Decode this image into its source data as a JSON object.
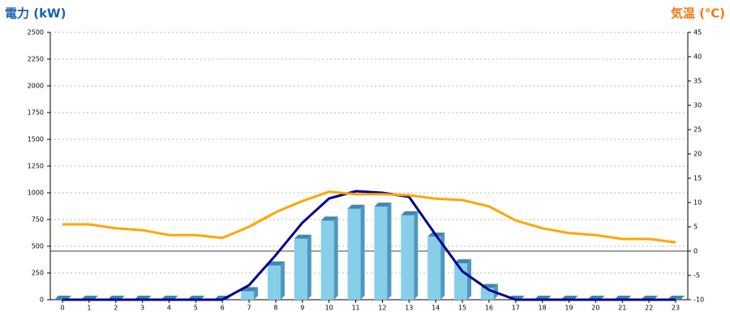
{
  "chart_data": {
    "type": "bar",
    "y_label": "電力 (kW)",
    "y2_label": "気温 (℃)",
    "categories": [
      "0",
      "1",
      "2",
      "3",
      "4",
      "5",
      "6",
      "7",
      "8",
      "9",
      "10",
      "11",
      "12",
      "13",
      "14",
      "15",
      "16",
      "17",
      "18",
      "19",
      "20",
      "21",
      "22",
      "23"
    ],
    "series": [
      {
        "type": "bar",
        "color": "#87ceeb",
        "values": [
          0,
          0,
          0,
          0,
          0,
          0,
          0,
          80,
          320,
          570,
          740,
          850,
          870,
          790,
          590,
          340,
          110,
          0,
          0,
          0,
          0,
          0,
          0,
          0
        ]
      },
      {
        "type": "line",
        "color": "#00008b",
        "values": [
          0,
          0,
          0,
          0,
          0,
          0,
          0,
          136,
          417,
          720,
          947,
          1015,
          1000,
          962,
          606,
          265,
          91,
          0,
          0,
          0,
          0,
          0,
          0,
          0
        ]
      },
      {
        "type": "line",
        "color": "#ffa500",
        "axis": "y2",
        "values": [
          5.5,
          5.5,
          4.7,
          4.3,
          3.3,
          3.3,
          2.7,
          5,
          8,
          10.3,
          12.2,
          11.7,
          11.7,
          11.5,
          10.8,
          10.5,
          9.2,
          6.3,
          4.7,
          3.7,
          3.3,
          2.5,
          2.5,
          1.8
        ]
      }
    ],
    "ylim": [
      0,
      2500
    ],
    "yticks": [
      0,
      250,
      500,
      750,
      1000,
      1250,
      1500,
      1750,
      2000,
      2250,
      2500
    ],
    "y2lim": [
      -10,
      45
    ],
    "y2ticks": [
      -10,
      -5,
      0,
      5,
      10,
      15,
      20,
      25,
      30,
      35,
      40,
      45
    ],
    "grid": true
  }
}
